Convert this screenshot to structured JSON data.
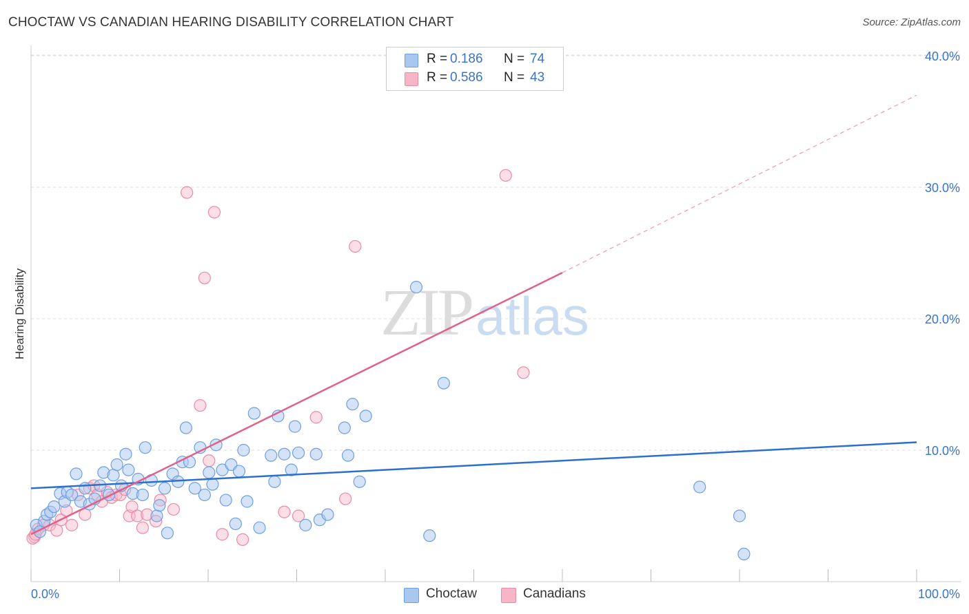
{
  "header": {
    "title": "CHOCTAW VS CANADIAN HEARING DISABILITY CORRELATION CHART",
    "source": "Source: ZipAtlas.com"
  },
  "legend": {
    "rows": [
      {
        "r_label": "R =",
        "r_value": "0.186",
        "n_label": "N =",
        "n_value": "74",
        "color": "#a9c8f0"
      },
      {
        "r_label": "R =",
        "r_value": "0.586",
        "n_label": "N =",
        "n_value": "43",
        "color": "#f6b6c8"
      }
    ]
  },
  "bottom_legend": {
    "choctaw": "Choctaw",
    "canadians": "Canadians"
  },
  "watermark": {
    "zip": "ZIP",
    "atlas": "atlas"
  },
  "colors": {
    "choctaw_fill": "#a9c8f0",
    "choctaw_stroke": "#6e9fe0",
    "choctaw_line": "#2b6fcf",
    "canadians_fill": "#f6b6c8",
    "canadians_stroke": "#e98aa6",
    "canadians_line": "#e0608a",
    "tick_text": "#3a74c9",
    "grid": "#dddddd"
  },
  "chart_data": {
    "type": "scatter",
    "title": "CHOCTAW VS CANADIAN HEARING DISABILITY CORRELATION CHART",
    "xlabel": "",
    "ylabel": "Hearing Disability",
    "xlim": [
      0,
      100
    ],
    "ylim": [
      0,
      42
    ],
    "x_tick_labels": [
      "0.0%",
      "100.0%"
    ],
    "y_ticks": [
      10,
      20,
      30,
      40
    ],
    "y_tick_labels": [
      "10.0%",
      "20.0%",
      "30.0%",
      "40.0%"
    ],
    "grid": true,
    "legend_position": "top-center",
    "series": [
      {
        "name": "Choctaw",
        "R": 0.186,
        "N": 74,
        "trend": {
          "x0": 0,
          "y0": 7.1,
          "x1": 100,
          "y1": 10.6
        },
        "points": [
          [
            0.6,
            4.3
          ],
          [
            1.0,
            3.8
          ],
          [
            1.5,
            4.6
          ],
          [
            1.8,
            5.1
          ],
          [
            2.2,
            5.3
          ],
          [
            2.6,
            5.7
          ],
          [
            3.3,
            6.7
          ],
          [
            3.8,
            6.1
          ],
          [
            4.1,
            6.8
          ],
          [
            4.6,
            6.6
          ],
          [
            5.1,
            8.2
          ],
          [
            5.6,
            6.1
          ],
          [
            6.1,
            7.1
          ],
          [
            6.6,
            5.9
          ],
          [
            7.2,
            6.3
          ],
          [
            7.8,
            7.3
          ],
          [
            8.2,
            8.3
          ],
          [
            8.8,
            6.6
          ],
          [
            9.3,
            8.1
          ],
          [
            9.7,
            8.9
          ],
          [
            10.2,
            7.3
          ],
          [
            10.7,
            9.7
          ],
          [
            11.0,
            8.5
          ],
          [
            11.5,
            6.7
          ],
          [
            12.1,
            7.8
          ],
          [
            12.6,
            6.6
          ],
          [
            12.9,
            10.2
          ],
          [
            13.6,
            7.7
          ],
          [
            14.2,
            5.0
          ],
          [
            14.5,
            5.8
          ],
          [
            15.1,
            7.1
          ],
          [
            15.4,
            3.7
          ],
          [
            16.0,
            8.2
          ],
          [
            16.6,
            7.6
          ],
          [
            17.1,
            9.1
          ],
          [
            17.5,
            11.7
          ],
          [
            17.9,
            9.1
          ],
          [
            18.5,
            7.1
          ],
          [
            19.1,
            10.2
          ],
          [
            19.6,
            6.6
          ],
          [
            20.1,
            8.3
          ],
          [
            20.5,
            7.4
          ],
          [
            20.9,
            10.4
          ],
          [
            21.6,
            8.5
          ],
          [
            22.0,
            6.2
          ],
          [
            22.6,
            8.9
          ],
          [
            23.1,
            4.4
          ],
          [
            23.5,
            8.4
          ],
          [
            24.0,
            10.0
          ],
          [
            24.4,
            6.1
          ],
          [
            25.2,
            12.8
          ],
          [
            25.8,
            4.1
          ],
          [
            27.1,
            9.6
          ],
          [
            27.5,
            7.6
          ],
          [
            27.9,
            12.6
          ],
          [
            28.6,
            9.7
          ],
          [
            29.4,
            8.5
          ],
          [
            29.8,
            11.8
          ],
          [
            30.2,
            9.8
          ],
          [
            31.0,
            4.3
          ],
          [
            32.2,
            9.7
          ],
          [
            32.6,
            4.7
          ],
          [
            33.5,
            5.1
          ],
          [
            35.8,
            9.6
          ],
          [
            35.4,
            11.7
          ],
          [
            36.3,
            13.5
          ],
          [
            37.1,
            7.6
          ],
          [
            37.8,
            12.6
          ],
          [
            43.5,
            22.4
          ],
          [
            45.0,
            3.5
          ],
          [
            46.6,
            15.1
          ],
          [
            75.5,
            7.2
          ],
          [
            80.0,
            5.0
          ],
          [
            80.5,
            2.1
          ]
        ]
      },
      {
        "name": "Canadians",
        "R": 0.586,
        "N": 43,
        "trend_solid": {
          "x0": 0,
          "y0": 3.6,
          "x1": 60,
          "y1": 23.5
        },
        "trend_dashed": {
          "x0": 60,
          "y0": 23.5,
          "x1": 100,
          "y1": 37.0
        },
        "points": [
          [
            0.4,
            3.4
          ],
          [
            0.8,
            4.0
          ],
          [
            1.4,
            4.3
          ],
          [
            2.1,
            4.3
          ],
          [
            2.9,
            3.9
          ],
          [
            3.4,
            4.7
          ],
          [
            4.0,
            5.4
          ],
          [
            4.6,
            4.3
          ],
          [
            5.3,
            6.6
          ],
          [
            6.1,
            5.1
          ],
          [
            6.6,
            7.1
          ],
          [
            7.1,
            7.3
          ],
          [
            7.5,
            6.6
          ],
          [
            8.0,
            6.1
          ],
          [
            8.6,
            6.8
          ],
          [
            9.1,
            6.4
          ],
          [
            9.6,
            6.6
          ],
          [
            10.1,
            6.6
          ],
          [
            10.6,
            7.0
          ],
          [
            11.1,
            5.0
          ],
          [
            11.4,
            5.7
          ],
          [
            12.0,
            5.0
          ],
          [
            12.6,
            4.1
          ],
          [
            13.1,
            5.1
          ],
          [
            14.1,
            4.6
          ],
          [
            14.6,
            6.2
          ],
          [
            16.1,
            5.5
          ],
          [
            17.6,
            29.6
          ],
          [
            19.1,
            13.4
          ],
          [
            19.6,
            23.1
          ],
          [
            20.1,
            9.2
          ],
          [
            20.7,
            28.1
          ],
          [
            21.6,
            3.6
          ],
          [
            23.9,
            3.2
          ],
          [
            28.6,
            5.3
          ],
          [
            30.2,
            5.0
          ],
          [
            32.2,
            12.5
          ],
          [
            35.5,
            6.3
          ],
          [
            36.6,
            25.5
          ],
          [
            53.6,
            30.9
          ],
          [
            55.6,
            15.9
          ],
          [
            0.2,
            3.3
          ],
          [
            0.5,
            3.6
          ]
        ]
      }
    ]
  }
}
